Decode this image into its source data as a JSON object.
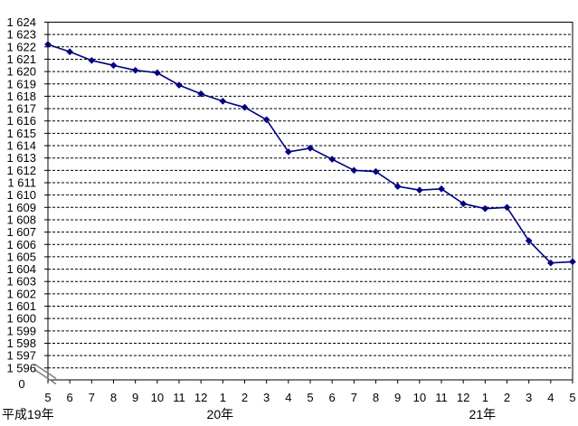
{
  "chart_data": {
    "type": "line",
    "title": "",
    "xlabel": "",
    "ylabel": "",
    "legend": "none",
    "grid": "horizontal-dashed",
    "background_color": "#FFFFFF",
    "axis_color": "#000000",
    "grid_color": "#000000",
    "break_mark_color": "#808080",
    "x_labels": [
      "5",
      "6",
      "7",
      "8",
      "9",
      "10",
      "11",
      "12",
      "1",
      "2",
      "3",
      "4",
      "5",
      "6",
      "7",
      "8",
      "9",
      "10",
      "11",
      "12",
      "1",
      "2",
      "3",
      "4",
      "5"
    ],
    "year_rows": [
      {
        "label": "平成19年",
        "position": "left"
      },
      {
        "label": "20年",
        "anchor_index": 8
      },
      {
        "label": "21年",
        "anchor_index": 20
      }
    ],
    "y_axis": {
      "max_displayed": 1624,
      "min_displayed": 1596,
      "tick_step": 1,
      "axis_break": true,
      "zero_label": "0",
      "tick_labels": [
        "1 624",
        "1 623",
        "1 622",
        "1 621",
        "1 620",
        "1 619",
        "1 618",
        "1 617",
        "1 616",
        "1 615",
        "1 614",
        "1 613",
        "1 612",
        "1 611",
        "1 610",
        "1 609",
        "1 608",
        "1 607",
        "1 606",
        "1 605",
        "1 604",
        "1 603",
        "1 602",
        "1 601",
        "1 600",
        "1 599",
        "1 598",
        "1 597",
        "1 596"
      ]
    },
    "series": [
      {
        "name": "",
        "color": "#000080",
        "marker": "diamond",
        "values": [
          1622.2,
          1621.6,
          1620.9,
          1620.5,
          1620.1,
          1619.9,
          1618.9,
          1618.2,
          1617.6,
          1617.1,
          1616.1,
          1613.5,
          1613.8,
          1612.9,
          1612.0,
          1611.9,
          1610.7,
          1610.4,
          1610.5,
          1609.3,
          1608.9,
          1609.0,
          1606.3,
          1604.5,
          1604.6
        ]
      }
    ]
  }
}
